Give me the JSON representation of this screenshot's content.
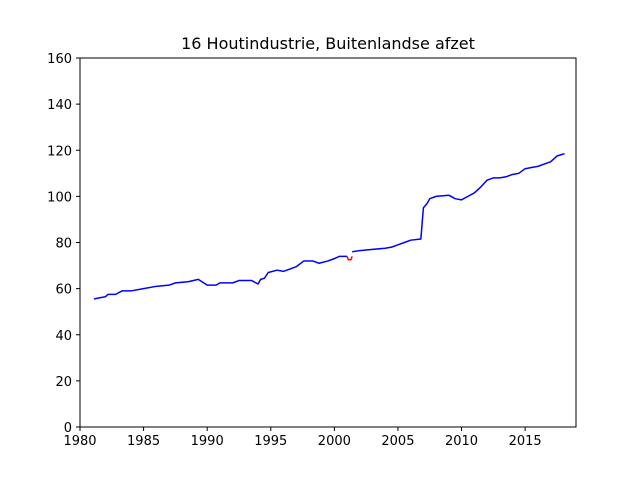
{
  "chart_data": {
    "type": "line",
    "title": "16 Houtindustrie, Buitenlandse afzet",
    "xlabel": "",
    "ylabel": "",
    "xlim": [
      1980,
      2019
    ],
    "ylim": [
      0,
      160
    ],
    "xticks": [
      1980,
      1985,
      1990,
      1995,
      2000,
      2005,
      2010,
      2015
    ],
    "yticks": [
      0,
      20,
      40,
      60,
      80,
      100,
      120,
      140,
      160
    ],
    "grid": false,
    "series": [
      {
        "color": "#0000ff",
        "points": [
          [
            1981.1,
            55.5
          ],
          [
            1981.5,
            56.0
          ],
          [
            1982.0,
            56.5
          ],
          [
            1982.2,
            57.5
          ],
          [
            1982.8,
            57.5
          ],
          [
            1983.3,
            59.0
          ],
          [
            1984.0,
            59.0
          ],
          [
            1985.0,
            60.0
          ],
          [
            1986.0,
            61.0
          ],
          [
            1987.0,
            61.5
          ],
          [
            1987.5,
            62.5
          ],
          [
            1988.5,
            63.0
          ],
          [
            1989.3,
            64.0
          ],
          [
            1990.0,
            61.5
          ],
          [
            1990.7,
            61.5
          ],
          [
            1991.0,
            62.5
          ],
          [
            1992.0,
            62.5
          ],
          [
            1992.5,
            63.5
          ],
          [
            1993.5,
            63.5
          ],
          [
            1994.0,
            62.0
          ],
          [
            1994.2,
            64.0
          ],
          [
            1994.5,
            64.5
          ],
          [
            1994.8,
            67.0
          ],
          [
            1995.5,
            68.0
          ],
          [
            1996.0,
            67.5
          ],
          [
            1996.5,
            68.5
          ],
          [
            1997.0,
            69.5
          ],
          [
            1997.6,
            72.0
          ],
          [
            1998.3,
            72.0
          ],
          [
            1998.8,
            71.0
          ],
          [
            1999.5,
            72.0
          ],
          [
            2000.0,
            73.0
          ],
          [
            2000.4,
            74.0
          ],
          [
            2001.0,
            74.0
          ]
        ]
      },
      {
        "color": "#ff0000",
        "points": [
          [
            2001.0,
            74.0
          ],
          [
            2001.1,
            72.5
          ],
          [
            2001.3,
            72.5
          ],
          [
            2001.4,
            74.0
          ]
        ]
      },
      {
        "color": "#0000ff",
        "points": [
          [
            2001.4,
            76.0
          ],
          [
            2002.0,
            76.5
          ],
          [
            2003.0,
            77.0
          ],
          [
            2004.0,
            77.5
          ],
          [
            2004.5,
            78.0
          ],
          [
            2005.0,
            79.0
          ],
          [
            2005.5,
            80.0
          ],
          [
            2006.0,
            81.0
          ],
          [
            2006.8,
            81.5
          ],
          [
            2007.0,
            95.0
          ],
          [
            2007.3,
            97.0
          ],
          [
            2007.5,
            99.0
          ],
          [
            2008.0,
            100.0
          ],
          [
            2009.0,
            100.5
          ],
          [
            2009.5,
            99.0
          ],
          [
            2010.0,
            98.5
          ],
          [
            2010.5,
            100.0
          ],
          [
            2011.0,
            101.5
          ],
          [
            2011.5,
            104.0
          ],
          [
            2012.0,
            107.0
          ],
          [
            2012.5,
            108.0
          ],
          [
            2013.0,
            108.0
          ],
          [
            2013.5,
            108.5
          ],
          [
            2014.0,
            109.5
          ],
          [
            2014.5,
            110.0
          ],
          [
            2015.0,
            112.0
          ],
          [
            2015.5,
            112.5
          ],
          [
            2016.0,
            113.0
          ],
          [
            2016.5,
            114.0
          ],
          [
            2017.0,
            115.0
          ],
          [
            2017.5,
            117.5
          ],
          [
            2018.1,
            118.5
          ]
        ]
      }
    ]
  }
}
